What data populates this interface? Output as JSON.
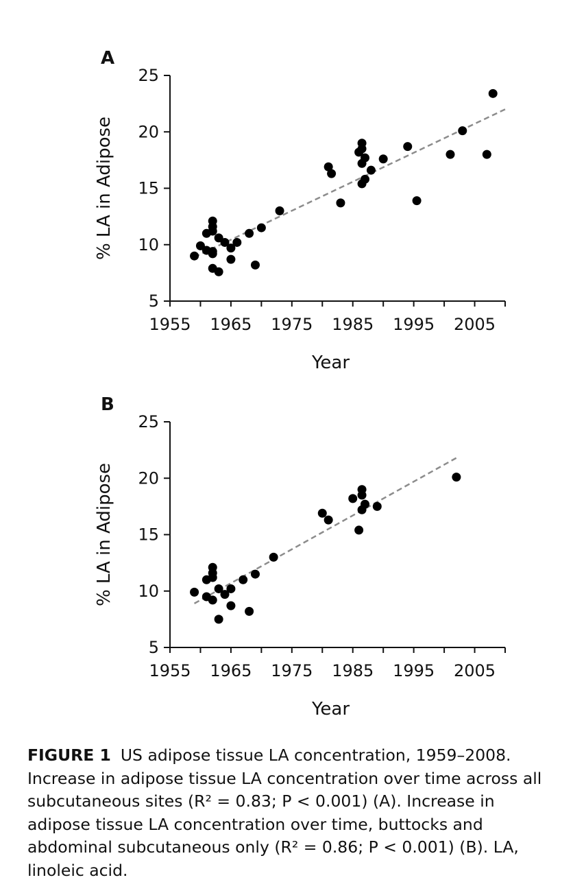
{
  "chart_data": [
    {
      "type": "scatter",
      "panel": "A",
      "xlabel": "Year",
      "ylabel": "% LA in Adipose",
      "xlim": [
        1955,
        2010
      ],
      "ylim": [
        5,
        25
      ],
      "xticks": [
        1955,
        1965,
        1975,
        1985,
        1995,
        2005
      ],
      "yticks": [
        5,
        10,
        15,
        20,
        25
      ],
      "grid": false,
      "trendline": {
        "style": "dashed",
        "color": "#8c8c8c",
        "x": [
          1959,
          2010
        ],
        "y": [
          8.9,
          22.0
        ]
      },
      "points": [
        [
          1959,
          9.0
        ],
        [
          1960,
          9.9
        ],
        [
          1961,
          11.0
        ],
        [
          1961,
          9.5
        ],
        [
          1962,
          12.1
        ],
        [
          1962,
          11.6
        ],
        [
          1962,
          11.2
        ],
        [
          1962,
          9.4
        ],
        [
          1962,
          9.2
        ],
        [
          1962,
          7.9
        ],
        [
          1963,
          10.6
        ],
        [
          1963,
          7.6
        ],
        [
          1964,
          10.2
        ],
        [
          1965,
          9.7
        ],
        [
          1965,
          8.7
        ],
        [
          1966,
          10.2
        ],
        [
          1968,
          11.0
        ],
        [
          1969,
          8.2
        ],
        [
          1970,
          11.5
        ],
        [
          1973,
          13.0
        ],
        [
          1981,
          16.9
        ],
        [
          1981.5,
          16.3
        ],
        [
          1983,
          13.7
        ],
        [
          1986,
          18.2
        ],
        [
          1986.5,
          19.0
        ],
        [
          1986.5,
          18.5
        ],
        [
          1986.5,
          17.2
        ],
        [
          1987,
          17.7
        ],
        [
          1986.5,
          15.4
        ],
        [
          1987,
          15.8
        ],
        [
          1988,
          16.6
        ],
        [
          1990,
          17.6
        ],
        [
          1994,
          18.7
        ],
        [
          1995.5,
          13.9
        ],
        [
          2001,
          18.0
        ],
        [
          2003,
          20.1
        ],
        [
          2007,
          18.0
        ],
        [
          2008,
          23.4
        ]
      ]
    },
    {
      "type": "scatter",
      "panel": "B",
      "xlabel": "Year",
      "ylabel": "% LA in Adipose",
      "xlim": [
        1955,
        2010
      ],
      "ylim": [
        5,
        25
      ],
      "xticks": [
        1955,
        1965,
        1975,
        1985,
        1995,
        2005
      ],
      "yticks": [
        5,
        10,
        15,
        20,
        25
      ],
      "grid": false,
      "trendline": {
        "style": "dashed",
        "color": "#8c8c8c",
        "x": [
          1959,
          2002
        ],
        "y": [
          8.9,
          21.8
        ]
      },
      "points": [
        [
          1959,
          9.9
        ],
        [
          1961,
          11.0
        ],
        [
          1961,
          9.5
        ],
        [
          1962,
          12.1
        ],
        [
          1962,
          11.6
        ],
        [
          1962,
          11.2
        ],
        [
          1962,
          9.2
        ],
        [
          1963,
          10.2
        ],
        [
          1963,
          7.5
        ],
        [
          1964,
          9.7
        ],
        [
          1965,
          10.2
        ],
        [
          1965,
          8.7
        ],
        [
          1967,
          11.0
        ],
        [
          1968,
          8.2
        ],
        [
          1969,
          11.5
        ],
        [
          1972,
          13.0
        ],
        [
          1980,
          16.9
        ],
        [
          1981,
          16.3
        ],
        [
          1985,
          18.2
        ],
        [
          1986,
          15.4
        ],
        [
          1986.5,
          19.0
        ],
        [
          1986.5,
          18.5
        ],
        [
          1986.5,
          17.2
        ],
        [
          1987,
          17.7
        ],
        [
          1989,
          17.5
        ],
        [
          2002,
          20.1
        ]
      ]
    }
  ],
  "caption": {
    "label": "FIGURE 1",
    "text": "US adipose tissue LA concentration, 1959–2008. Increase in adipose tissue LA concentration over time across all subcutaneous sites (R² = 0.83; P < 0.001) (A). Increase in adipose tissue LA concentration over time, buttocks and abdominal subcutaneous only (R² = 0.86; P < 0.001) (B). LA, linoleic acid."
  }
}
